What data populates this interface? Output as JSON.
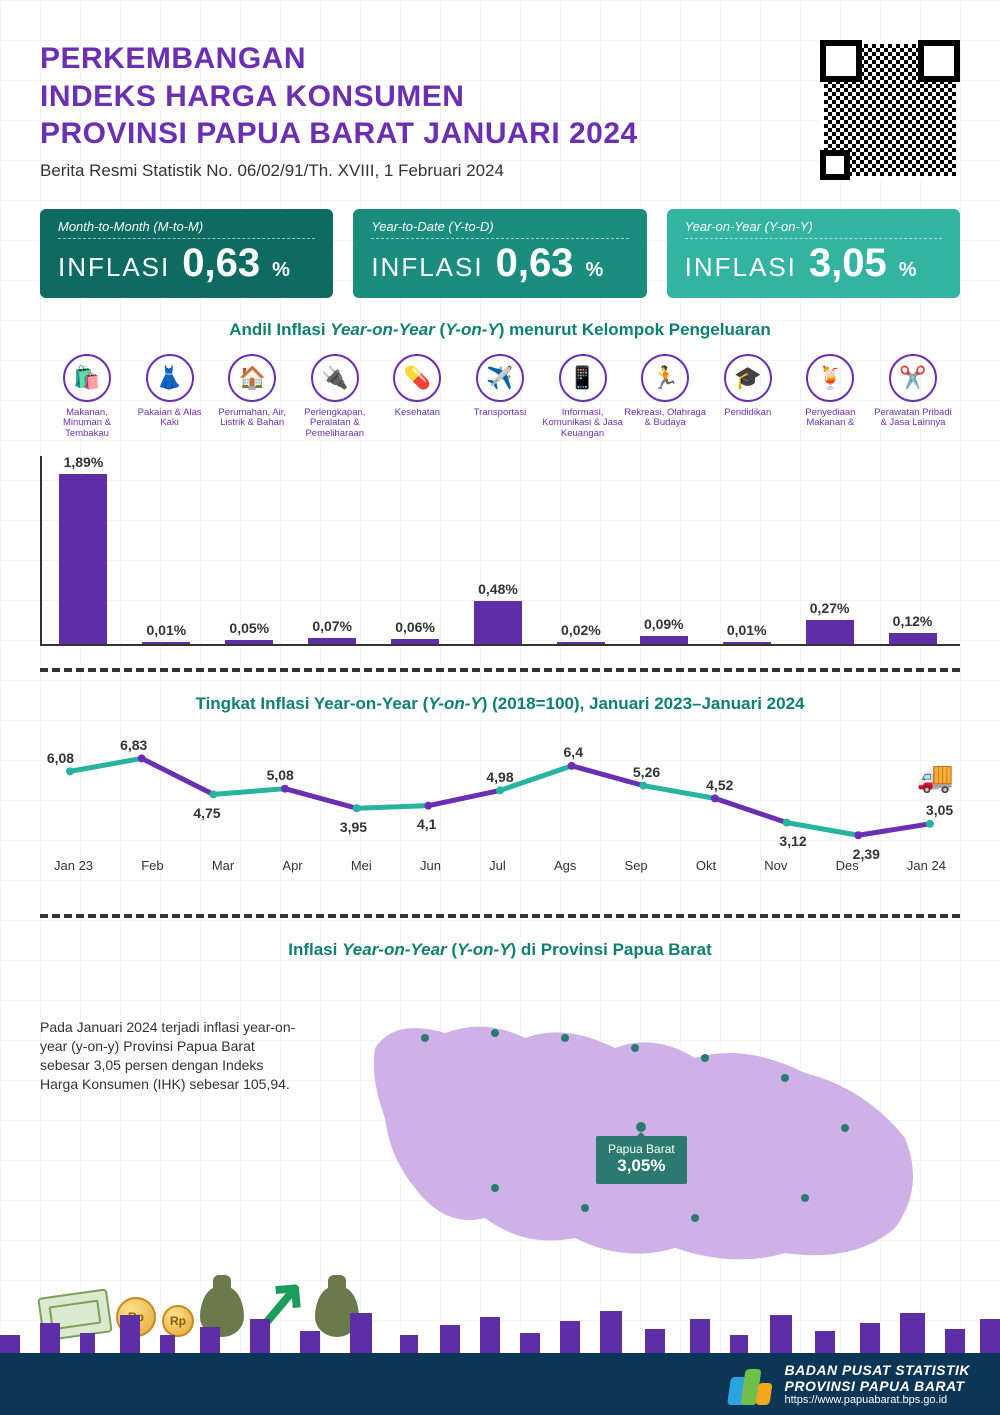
{
  "header": {
    "title_l1": "PERKEMBANGAN",
    "title_l2": "INDEKS HARGA KONSUMEN",
    "title_l3": "PROVINSI PAPUA BARAT JANUARI 2024",
    "subtitle": "Berita Resmi Statistik No. 06/02/91/Th. XVIII, 1 Februari 2024"
  },
  "metrics": [
    {
      "top": "Month-to-Month (M-to-M)",
      "label": "INFLASI",
      "value": "0,63",
      "pct": "%",
      "tone": "dk"
    },
    {
      "top": "Year-to-Date (Y-to-D)",
      "label": "INFLASI",
      "value": "0,63",
      "pct": "%",
      "tone": "md"
    },
    {
      "top": "Year-on-Year (Y-on-Y)",
      "label": "INFLASI",
      "value": "3,05",
      "pct": "%",
      "tone": "lt"
    }
  ],
  "section_titles": {
    "bar": "Andil Inflasi Year-on-Year (Y-on-Y) menurut Kelompok Pengeluaran",
    "line": "Tingkat Inflasi Year-on-Year (Y-on-Y) (2018=100), Januari 2023–Januari 2024",
    "map": "Inflasi Year-on-Year (Y-on-Y) di Provinsi Papua Barat"
  },
  "categories": [
    {
      "label": "Makanan, Minuman & Tembakau",
      "icon": "🛍️"
    },
    {
      "label": "Pakaian & Alas Kaki",
      "icon": "👗"
    },
    {
      "label": "Perumahan, Air, Listrik & Bahan",
      "icon": "🏠"
    },
    {
      "label": "Perlengkapan, Peralatan & Pemeliharaan",
      "icon": "🔌"
    },
    {
      "label": "Kesehatan",
      "icon": "💊"
    },
    {
      "label": "Transportasi",
      "icon": "✈️"
    },
    {
      "label": "Informasi, Komunikasi & Jasa Keuangan",
      "icon": "📱"
    },
    {
      "label": "Rekreasi, Olahraga & Budaya",
      "icon": "🏃"
    },
    {
      "label": "Pendidikan",
      "icon": "🎓"
    },
    {
      "label": "Penyediaan Makanan &",
      "icon": "🍹"
    },
    {
      "label": "Perawatan Pribadi & Jasa Lainnya",
      "icon": "✂️"
    }
  ],
  "bar_chart": {
    "type": "bar",
    "bar_color": "#5e2ea6",
    "max": 1.89,
    "bars": [
      {
        "label": "1,89%",
        "value": 1.89
      },
      {
        "label": "0,01%",
        "value": 0.01
      },
      {
        "label": "0,05%",
        "value": 0.05
      },
      {
        "label": "0,07%",
        "value": 0.07
      },
      {
        "label": "0,06%",
        "value": 0.06
      },
      {
        "label": "0,48%",
        "value": 0.48
      },
      {
        "label": "0,02%",
        "value": 0.02
      },
      {
        "label": "0,09%",
        "value": 0.09
      },
      {
        "label": "0,01%",
        "value": 0.01
      },
      {
        "label": "0,27%",
        "value": 0.27
      },
      {
        "label": "0,12%",
        "value": 0.12
      }
    ]
  },
  "line_chart": {
    "type": "line",
    "y_min": 2.0,
    "y_max": 7.2,
    "colors": [
      "#26b3a0",
      "#6b2fb3"
    ],
    "stroke_width": 5,
    "x_labels": [
      "Jan 23",
      "Feb",
      "Mar",
      "Apr",
      "Mei",
      "Jun",
      "Jul",
      "Ags",
      "Sep",
      "Okt",
      "Nov",
      "Des",
      "Jan 24"
    ],
    "points": [
      {
        "v": 6.08,
        "lbl": "6,08",
        "pos": "above"
      },
      {
        "v": 6.83,
        "lbl": "6,83",
        "pos": "above"
      },
      {
        "v": 4.75,
        "lbl": "4,75",
        "pos": "below"
      },
      {
        "v": 5.08,
        "lbl": "5,08",
        "pos": "above"
      },
      {
        "v": 3.95,
        "lbl": "3,95",
        "pos": "below"
      },
      {
        "v": 4.1,
        "lbl": "4,1",
        "pos": "below"
      },
      {
        "v": 4.98,
        "lbl": "4,98",
        "pos": "above"
      },
      {
        "v": 6.4,
        "lbl": "6,4",
        "pos": "above"
      },
      {
        "v": 5.26,
        "lbl": "5,26",
        "pos": "above"
      },
      {
        "v": 4.52,
        "lbl": "4,52",
        "pos": "above"
      },
      {
        "v": 3.12,
        "lbl": "3,12",
        "pos": "below"
      },
      {
        "v": 2.39,
        "lbl": "2,39",
        "pos": "below"
      },
      {
        "v": 3.05,
        "lbl": "3,05",
        "pos": "above"
      }
    ]
  },
  "map": {
    "text": "Pada Januari 2024 terjadi inflasi year-on-year (y-on-y) Provinsi Papua Barat sebesar 3,05 persen dengan Indeks Harga Konsumen (IHK) sebesar 105,94.",
    "pin_label": "Papua Barat",
    "pin_value": "3,05%",
    "fill": "#c9a8e4",
    "dot_color": "#2c7a6f"
  },
  "footer": {
    "l1": "BADAN PUSAT STATISTIK",
    "l2": "PROVINSI PAPUA BARAT",
    "l3": "https://www.papuabarat.bps.go.id"
  }
}
